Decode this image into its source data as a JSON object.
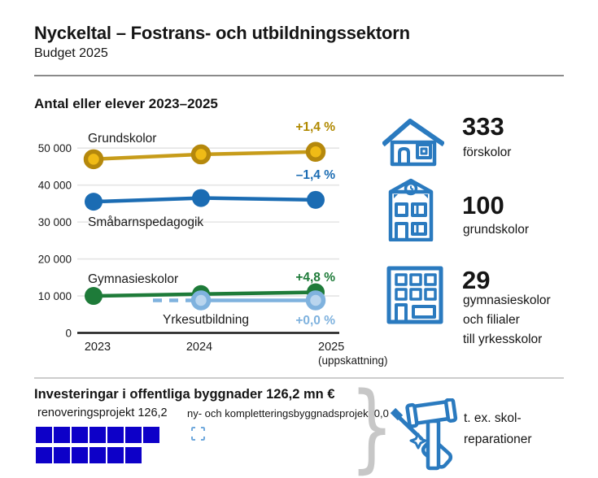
{
  "header": {
    "title": "Nyckeltal – Fostrans- och utbildningssektorn",
    "subtitle": "Budget 2025"
  },
  "chart_data": {
    "type": "line",
    "title": "Antal eller elever 2023–2025",
    "x": [
      "2023",
      "2024",
      "2025"
    ],
    "x_note": "(uppskattning)",
    "ylim": [
      0,
      55000
    ],
    "yticks": [
      0,
      10000,
      20000,
      30000,
      40000,
      50000
    ],
    "ytick_labels": [
      "0",
      "10 000",
      "20 000",
      "30 000",
      "40 000",
      "50 000"
    ],
    "grid": true,
    "legend_position": "inline-labels",
    "series": [
      {
        "name": "Grundskolor",
        "values": [
          47000,
          48300,
          49000
        ],
        "change": "+1,4 %",
        "color": "#C79C1A",
        "marker": "ring",
        "marker_fill": "#F0BB16",
        "ring_color": "#B5880C",
        "label_color": "#B08900"
      },
      {
        "name": "Småbarnspedagogik",
        "values": [
          35500,
          36500,
          36000
        ],
        "change": "–1,4 %",
        "color": "#1B6CB3",
        "marker": "dot",
        "label_color": "#1B6CB3"
      },
      {
        "name": "Gymnasieskolor",
        "values": [
          10000,
          10500,
          11000
        ],
        "change": "+4,8 %",
        "color": "#1E7B39",
        "marker": "dot",
        "label_color": "#1E7B39"
      },
      {
        "name": "Yrkesutbildning",
        "values": [
          null,
          8800,
          8800
        ],
        "change": "+0,0 %",
        "color": "#7FB2DE",
        "marker": "ring",
        "marker_fill": "#B9D5EE",
        "ring_color": "#7FB2DE",
        "label_color": "#7FB2DE",
        "dash_leadin": true
      }
    ]
  },
  "stats": [
    {
      "icon": "preschool-house-icon",
      "value": "333",
      "label_lines": [
        "förskolor"
      ]
    },
    {
      "icon": "school-building-icon",
      "value": "100",
      "label_lines": [
        "grundskolor"
      ]
    },
    {
      "icon": "multistory-building-icon",
      "value": "29",
      "label_lines": [
        "gymnasieskolor",
        "och filialer",
        "till yrkesskolor"
      ]
    }
  ],
  "investments": {
    "heading": "Investeringar i offentliga byggnader 126,2 mn €",
    "renovation_label": "renoveringsprojekt 126,2",
    "renovation_value": "126,2",
    "squares_rows": [
      7,
      6
    ],
    "square_unit_total": 13,
    "new_label": "ny- och kompletteringsbyggnadsprojekt 0,0",
    "new_value": "0,0",
    "example_lines": [
      "t. ex. skol-",
      "reparationer"
    ],
    "square_color": "#0D00C8"
  },
  "colors": {
    "icon_blue": "#2A7ABF",
    "brace_gray": "#C7C7C7",
    "grid_gray": "#E4E4E4",
    "divider_dark": "#8A8A8A",
    "divider_light": "#CCCCCC"
  }
}
